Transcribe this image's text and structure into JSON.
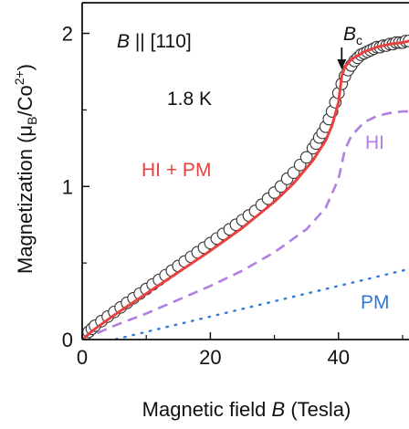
{
  "chart_data": {
    "type": "line",
    "xlabel": {
      "pre": "Magnetic field ",
      "var": "B",
      "post": " (Tesla)"
    },
    "ylabel": {
      "pre": "Magnetization (",
      "mu": "μ",
      "mu_sub": "B",
      "mid": "/Co",
      "sup": "2+",
      "post": ")"
    },
    "x_ticks": [
      0,
      20,
      40
    ],
    "y_ticks": [
      0,
      1,
      2
    ],
    "xlim": [
      0,
      51
    ],
    "ylim": [
      0,
      2.2
    ],
    "grid": false,
    "annotations": {
      "field_dir": {
        "var": "B",
        "text": " || [110]"
      },
      "temperature": "1.8 K",
      "critical_field": {
        "var": "B",
        "sub": "c",
        "x": 40.5
      },
      "combined_label": "HI + PM",
      "hi_label": "HI",
      "pm_label": "PM"
    },
    "series": [
      {
        "name": "HI + PM",
        "style": "solid",
        "color": "#e8413f",
        "x": [
          0,
          2,
          5,
          10,
          15,
          20,
          25,
          30,
          33,
          36,
          38,
          39,
          40,
          40.5,
          41,
          42,
          44,
          46,
          48,
          50,
          51
        ],
        "y": [
          0,
          0.07,
          0.16,
          0.3,
          0.44,
          0.58,
          0.73,
          0.9,
          1.02,
          1.17,
          1.3,
          1.4,
          1.55,
          1.72,
          1.78,
          1.83,
          1.88,
          1.91,
          1.93,
          1.94,
          1.95
        ]
      },
      {
        "name": "HI",
        "style": "dashed",
        "color": "#b07fe0",
        "x": [
          0,
          5,
          10,
          15,
          20,
          25,
          30,
          35,
          38,
          40,
          41,
          42,
          44,
          46,
          48,
          50,
          51
        ],
        "y": [
          0,
          0.09,
          0.17,
          0.26,
          0.35,
          0.45,
          0.57,
          0.72,
          0.86,
          1.05,
          1.24,
          1.33,
          1.42,
          1.46,
          1.48,
          1.49,
          1.49
        ]
      },
      {
        "name": "PM",
        "style": "dotted",
        "color": "#2f7ad8",
        "x": [
          0,
          51
        ],
        "y": [
          -0.05,
          0.46
        ]
      },
      {
        "name": "data",
        "style": "markers",
        "color": "#333333",
        "x": [
          0.5,
          1,
          1.5,
          2,
          3,
          4,
          5,
          6,
          7,
          8,
          9,
          10,
          11,
          12,
          13,
          14,
          15,
          16,
          17,
          18,
          19,
          20,
          21,
          22,
          23,
          24,
          25,
          26,
          27,
          28,
          29,
          30,
          31,
          32,
          33,
          34,
          35,
          36,
          36.5,
          37,
          37.5,
          38,
          38.5,
          39,
          39.5,
          40,
          40.5,
          41,
          41.5,
          42,
          42.5,
          43,
          43.5,
          44,
          44.5,
          45,
          45.5,
          46,
          46.5,
          47,
          47.5,
          48,
          48.5,
          49,
          49.5,
          50,
          50.5,
          51
        ],
        "y": [
          0.03,
          0.05,
          0.07,
          0.09,
          0.12,
          0.15,
          0.18,
          0.21,
          0.24,
          0.27,
          0.3,
          0.33,
          0.36,
          0.39,
          0.42,
          0.45,
          0.48,
          0.51,
          0.54,
          0.57,
          0.6,
          0.63,
          0.66,
          0.69,
          0.72,
          0.75,
          0.78,
          0.81,
          0.84,
          0.88,
          0.92,
          0.96,
          1.0,
          1.05,
          1.09,
          1.14,
          1.19,
          1.25,
          1.28,
          1.32,
          1.35,
          1.39,
          1.44,
          1.49,
          1.55,
          1.61,
          1.67,
          1.72,
          1.76,
          1.79,
          1.82,
          1.84,
          1.86,
          1.87,
          1.88,
          1.89,
          1.9,
          1.91,
          1.91,
          1.92,
          1.92,
          1.93,
          1.93,
          1.94,
          1.94,
          1.94,
          1.95,
          1.95
        ]
      }
    ]
  }
}
